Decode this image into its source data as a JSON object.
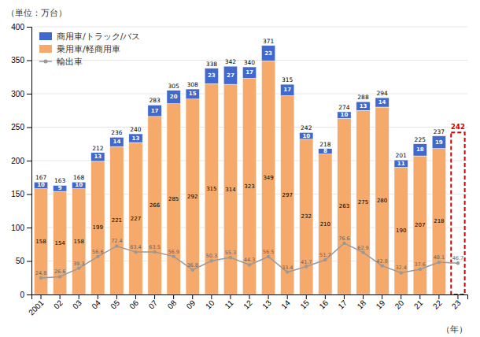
{
  "chart_data": {
    "type": "bar",
    "stacked": true,
    "title": "（単位：万台）",
    "x_label": "（年）",
    "categories": [
      "2001",
      "02",
      "03",
      "04",
      "05",
      "06",
      "07",
      "08",
      "09",
      "10",
      "11",
      "12",
      "13",
      "14",
      "15",
      "16",
      "17",
      "18",
      "19",
      "20",
      "21",
      "22",
      "23"
    ],
    "series": [
      {
        "name": "乗用車/軽商用車",
        "type": "bar",
        "color": "#F5A96A",
        "data_labels": true,
        "values": [
          158,
          154,
          158,
          199,
          221,
          227,
          266,
          285,
          292,
          315,
          314,
          323,
          349,
          297,
          232,
          210,
          263,
          275,
          280,
          190,
          207,
          218,
          null
        ]
      },
      {
        "name": "商用車/トラック/バス",
        "type": "bar",
        "color": "#4169CD",
        "data_labels": true,
        "values": [
          10,
          9,
          10,
          13,
          14,
          13,
          17,
          20,
          15,
          23,
          27,
          17,
          23,
          17,
          10,
          8,
          10,
          13,
          14,
          11,
          18,
          19,
          null
        ]
      },
      {
        "name": "輸出車",
        "type": "line",
        "color": "#999999",
        "marker": "circle",
        "data_labels": true,
        "values": [
          24.8,
          26.6,
          39.3,
          56.6,
          72.4,
          63.4,
          63.5,
          56.9,
          36.8,
          50.3,
          55.3,
          44.3,
          56.5,
          33.4,
          41.7,
          51.7,
          76.6,
          62.9,
          42.8,
          32.4,
          37.6,
          48.1,
          46.7
        ]
      }
    ],
    "totals": [
      167,
      163,
      168,
      212,
      236,
      240,
      283,
      305,
      308,
      338,
      342,
      340,
      371,
      315,
      242,
      218,
      274,
      288,
      294,
      201,
      225,
      237,
      null
    ],
    "forecast": {
      "color": "#CC0000",
      "line_style": "dashed",
      "data_labels": true,
      "values": [
        null,
        null,
        null,
        null,
        null,
        null,
        null,
        null,
        null,
        null,
        null,
        null,
        null,
        null,
        null,
        null,
        null,
        null,
        null,
        null,
        null,
        null,
        242
      ]
    },
    "ylim": [
      0,
      400
    ],
    "yticks": [
      0,
      50,
      100,
      150,
      200,
      250,
      300,
      350,
      400
    ],
    "grid": true,
    "legend": "upper left"
  }
}
